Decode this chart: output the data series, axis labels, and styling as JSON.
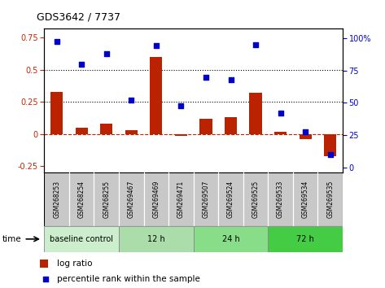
{
  "title": "GDS3642 / 7737",
  "samples": [
    "GSM268253",
    "GSM268254",
    "GSM268255",
    "GSM269467",
    "GSM269469",
    "GSM269471",
    "GSM269507",
    "GSM269524",
    "GSM269525",
    "GSM269533",
    "GSM269534",
    "GSM269535"
  ],
  "log_ratio": [
    0.33,
    0.05,
    0.08,
    0.03,
    0.6,
    -0.01,
    0.12,
    0.13,
    0.32,
    0.02,
    -0.04,
    -0.17
  ],
  "percentile_rank": [
    97,
    80,
    88,
    52,
    94,
    48,
    70,
    68,
    95,
    42,
    28,
    10
  ],
  "groups": [
    {
      "label": "baseline control",
      "color": "#CCEECC",
      "start": 0,
      "end": 3
    },
    {
      "label": "12 h",
      "color": "#AADDAA",
      "start": 3,
      "end": 6
    },
    {
      "label": "24 h",
      "color": "#88DD88",
      "start": 6,
      "end": 9
    },
    {
      "label": "72 h",
      "color": "#44CC44",
      "start": 9,
      "end": 12
    }
  ],
  "bar_color": "#BB2200",
  "dot_color": "#0000CC",
  "ylim_left": [
    -0.3,
    0.82
  ],
  "ylim_right": [
    -3.75,
    107
  ],
  "yticks_left": [
    -0.25,
    0.0,
    0.25,
    0.5,
    0.75
  ],
  "yticks_right": [
    0,
    25,
    50,
    75,
    100
  ],
  "hlines": [
    0.25,
    0.5
  ],
  "plot_bg": "#FFFFFF",
  "label_bg": "#C8C8C8"
}
